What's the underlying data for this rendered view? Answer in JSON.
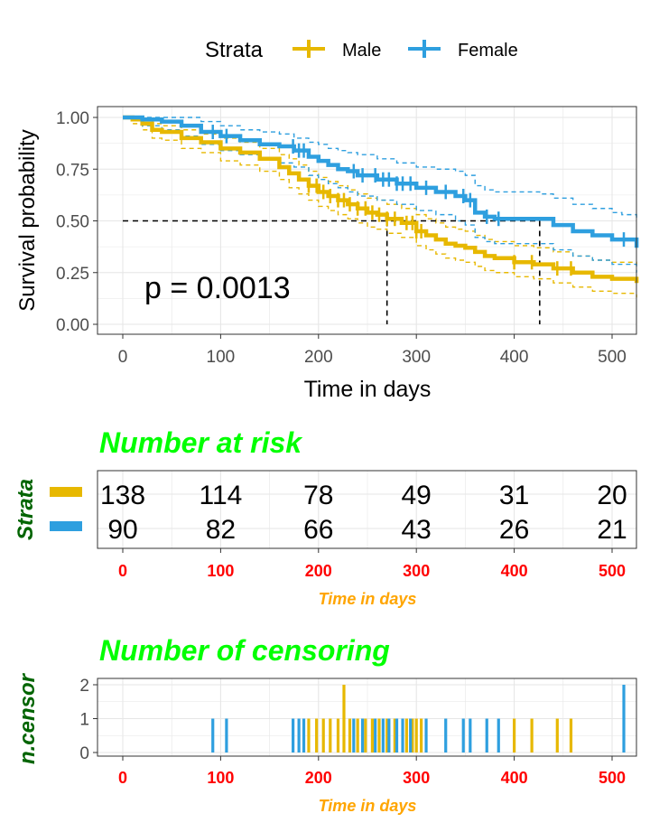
{
  "chart_data": [
    {
      "type": "line",
      "subtype": "kaplan-meier",
      "xlabel": "Time in days",
      "ylabel": "Survival probability",
      "xlim": [
        0,
        525
      ],
      "ylim": [
        0,
        1
      ],
      "xticks": [
        "0",
        "100",
        "200",
        "300",
        "400",
        "500"
      ],
      "yticks": [
        "0.00",
        "0.25",
        "0.50",
        "0.75",
        "1.00"
      ],
      "grid": true,
      "legend_title": "Strata",
      "legend_placement": "top",
      "pvalue_text": "p = 0.0013",
      "median_line_y": 0.5,
      "medians": [
        270,
        426
      ],
      "series": [
        {
          "name": "Male",
          "color": "#E7B800",
          "x": [
            0,
            10,
            20,
            30,
            40,
            60,
            80,
            100,
            120,
            140,
            160,
            170,
            180,
            190,
            200,
            210,
            220,
            230,
            240,
            250,
            260,
            270,
            285,
            300,
            310,
            320,
            330,
            340,
            350,
            360,
            370,
            380,
            400,
            420,
            440,
            460,
            480,
            500,
            525
          ],
          "y": [
            1.0,
            0.99,
            0.97,
            0.94,
            0.93,
            0.9,
            0.88,
            0.85,
            0.83,
            0.8,
            0.76,
            0.73,
            0.7,
            0.67,
            0.64,
            0.62,
            0.6,
            0.58,
            0.56,
            0.54,
            0.53,
            0.51,
            0.49,
            0.45,
            0.43,
            0.41,
            0.39,
            0.38,
            0.37,
            0.35,
            0.33,
            0.32,
            0.3,
            0.29,
            0.27,
            0.25,
            0.23,
            0.22,
            0.2
          ],
          "ci_upper": [
            1.0,
            1.0,
            0.99,
            0.97,
            0.96,
            0.94,
            0.92,
            0.9,
            0.88,
            0.85,
            0.82,
            0.8,
            0.77,
            0.74,
            0.71,
            0.69,
            0.67,
            0.65,
            0.63,
            0.61,
            0.6,
            0.58,
            0.56,
            0.53,
            0.51,
            0.49,
            0.47,
            0.46,
            0.45,
            0.43,
            0.41,
            0.4,
            0.38,
            0.37,
            0.35,
            0.33,
            0.31,
            0.3,
            0.29
          ],
          "ci_lower": [
            1.0,
            0.97,
            0.94,
            0.9,
            0.89,
            0.85,
            0.83,
            0.79,
            0.77,
            0.74,
            0.7,
            0.66,
            0.63,
            0.6,
            0.57,
            0.55,
            0.53,
            0.51,
            0.49,
            0.47,
            0.46,
            0.44,
            0.42,
            0.38,
            0.36,
            0.34,
            0.32,
            0.31,
            0.3,
            0.28,
            0.26,
            0.25,
            0.23,
            0.22,
            0.2,
            0.18,
            0.16,
            0.15,
            0.13
          ],
          "censor_x": [
            190,
            198,
            205,
            212,
            220,
            226,
            232,
            240,
            248,
            255,
            262,
            270,
            278,
            290,
            296,
            300,
            305,
            400,
            418,
            444,
            458
          ]
        },
        {
          "name": "Female",
          "color": "#2E9FDF",
          "x": [
            0,
            20,
            40,
            60,
            80,
            100,
            120,
            140,
            160,
            175,
            190,
            200,
            210,
            220,
            230,
            240,
            260,
            280,
            300,
            320,
            340,
            350,
            360,
            370,
            380,
            426,
            440,
            460,
            480,
            500,
            510,
            520,
            525
          ],
          "y": [
            1.0,
            0.99,
            0.98,
            0.96,
            0.93,
            0.91,
            0.89,
            0.87,
            0.86,
            0.84,
            0.81,
            0.79,
            0.77,
            0.75,
            0.74,
            0.72,
            0.7,
            0.68,
            0.66,
            0.64,
            0.62,
            0.6,
            0.54,
            0.52,
            0.51,
            0.51,
            0.48,
            0.45,
            0.43,
            0.41,
            0.41,
            0.41,
            0.37
          ],
          "ci_upper": [
            1.0,
            1.0,
            1.0,
            1.0,
            0.98,
            0.96,
            0.94,
            0.93,
            0.92,
            0.9,
            0.88,
            0.87,
            0.85,
            0.84,
            0.83,
            0.82,
            0.8,
            0.78,
            0.76,
            0.75,
            0.74,
            0.72,
            0.67,
            0.65,
            0.64,
            0.63,
            0.61,
            0.58,
            0.56,
            0.54,
            0.53,
            0.53,
            0.5
          ],
          "ci_lower": [
            1.0,
            0.96,
            0.94,
            0.91,
            0.87,
            0.84,
            0.82,
            0.8,
            0.78,
            0.76,
            0.72,
            0.7,
            0.68,
            0.66,
            0.64,
            0.62,
            0.6,
            0.58,
            0.55,
            0.53,
            0.5,
            0.48,
            0.42,
            0.4,
            0.39,
            0.39,
            0.36,
            0.33,
            0.31,
            0.29,
            0.29,
            0.29,
            0.25
          ],
          "censor_x": [
            92,
            106,
            174,
            180,
            185,
            236,
            245,
            258,
            266,
            272,
            280,
            286,
            294,
            310,
            330,
            348,
            355,
            372,
            384,
            512
          ]
        }
      ]
    },
    {
      "type": "table",
      "title": "Number at risk",
      "ylabel": "Strata",
      "xlabel": "Time in days",
      "xlim": [
        0,
        525
      ],
      "time_points": [
        0,
        100,
        200,
        300,
        400,
        500
      ],
      "tick_labels": [
        "0",
        "100",
        "200",
        "300",
        "400",
        "500"
      ],
      "rows": [
        {
          "name": "Male",
          "color": "#E7B800",
          "counts": [
            "138",
            "114",
            "78",
            "49",
            "31",
            "20"
          ]
        },
        {
          "name": "Female",
          "color": "#2E9FDF",
          "counts": [
            "90",
            "82",
            "66",
            "43",
            "26",
            "21"
          ]
        }
      ]
    },
    {
      "type": "bar",
      "title": "Number of censoring",
      "ylabel": "n.censor",
      "xlabel": "Time in days",
      "xlim": [
        0,
        525
      ],
      "ylim": [
        0,
        2
      ],
      "yticks": [
        "0",
        "1",
        "2"
      ],
      "xticks": [
        "0",
        "100",
        "200",
        "300",
        "400",
        "500"
      ],
      "series": [
        {
          "name": "Male",
          "color": "#E7B800",
          "x": [
            190,
            198,
            205,
            212,
            220,
            226,
            232,
            240,
            248,
            255,
            262,
            270,
            278,
            290,
            296,
            300,
            305,
            400,
            418,
            444,
            458
          ],
          "values": [
            1,
            1,
            1,
            1,
            1,
            2,
            1,
            1,
            1,
            1,
            1,
            1,
            1,
            1,
            1,
            1,
            1,
            1,
            1,
            1,
            1
          ]
        },
        {
          "name": "Female",
          "color": "#2E9FDF",
          "x": [
            92,
            106,
            174,
            180,
            185,
            236,
            245,
            258,
            266,
            272,
            280,
            286,
            294,
            310,
            330,
            348,
            355,
            372,
            384,
            512
          ],
          "values": [
            1,
            1,
            1,
            1,
            1,
            1,
            1,
            1,
            1,
            1,
            1,
            1,
            1,
            1,
            1,
            1,
            1,
            1,
            1,
            2
          ]
        }
      ]
    }
  ]
}
